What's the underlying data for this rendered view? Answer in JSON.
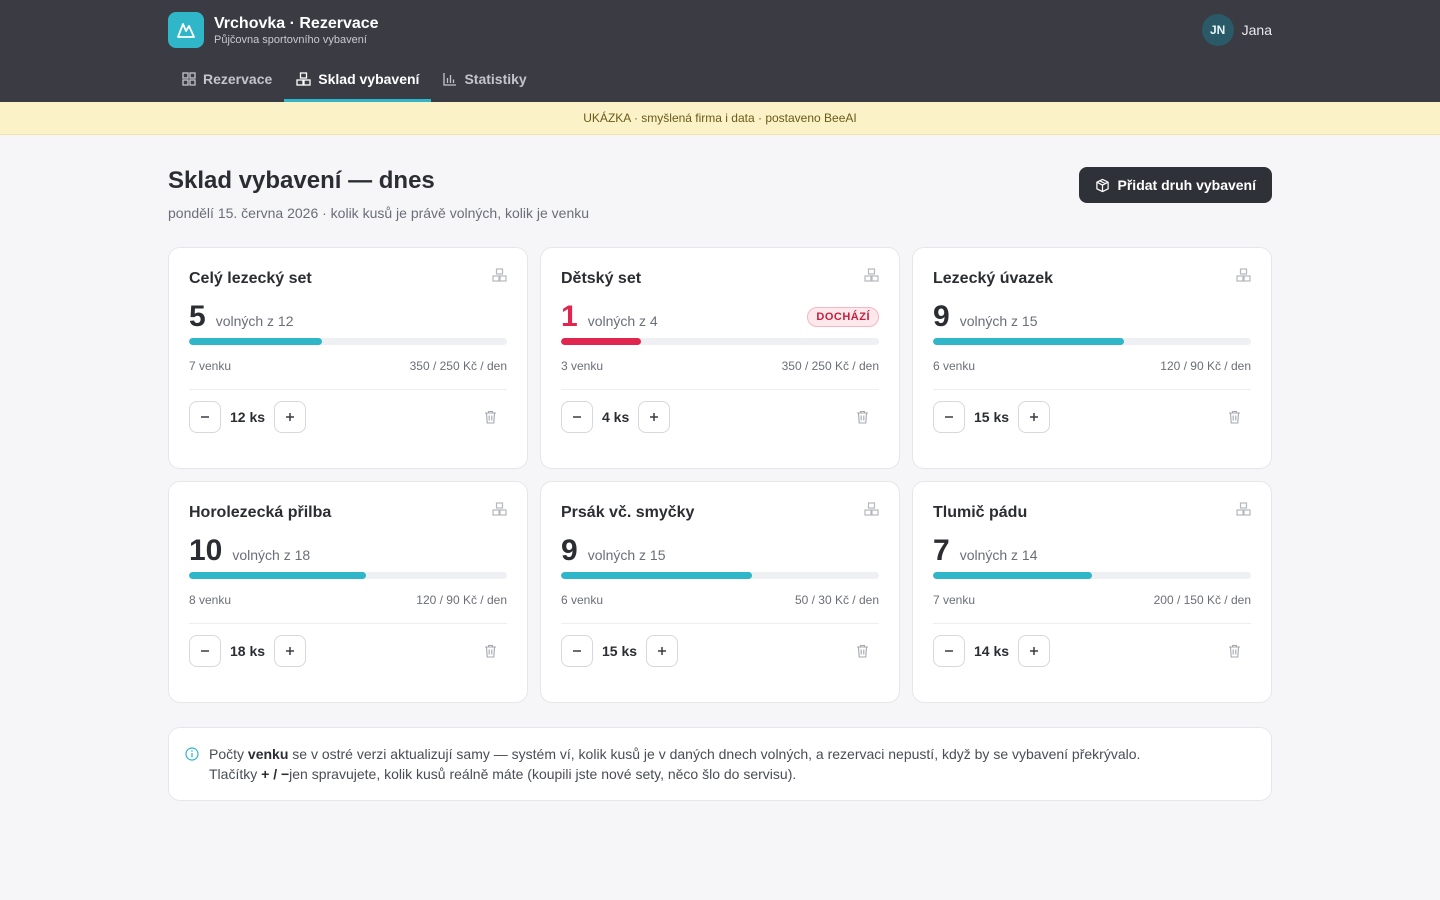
{
  "app": {
    "title": "Vrchovka · Rezervace",
    "subtitle": "Půjčovna sportovního vybavení",
    "accent": "#2fb6c9"
  },
  "user": {
    "initials": "JN",
    "name": "Jana"
  },
  "tabs": [
    {
      "label": "Rezervace",
      "icon": "grid-icon",
      "active": false
    },
    {
      "label": "Sklad vybavení",
      "icon": "boxes-icon",
      "active": true
    },
    {
      "label": "Statistiky",
      "icon": "bar-chart-icon",
      "active": false
    }
  ],
  "banner": "UKÁZKA · smyšlená firma i data · postaveno BeeAI",
  "page": {
    "title": "Sklad vybavení — dnes",
    "subtitle": "pondělí 15. června 2026 · kolik kusů je právě volných, kolik je venku",
    "add_button": "Přidat druh vybavení"
  },
  "items": [
    {
      "name": "Celý lezecký set",
      "available": "5",
      "of_label": "volných z 12",
      "available_fraction": 0.4167,
      "out": "7 venku",
      "price": "350 / 250 Kč / den",
      "qty": "12 ks",
      "low": false,
      "badge": ""
    },
    {
      "name": "Dětský set",
      "available": "1",
      "of_label": "volných z 4",
      "available_fraction": 0.25,
      "out": "3 venku",
      "price": "350 / 250 Kč / den",
      "qty": "4 ks",
      "low": true,
      "badge": "DOCHÁZÍ"
    },
    {
      "name": "Lezecký úvazek",
      "available": "9",
      "of_label": "volných z 15",
      "available_fraction": 0.6,
      "out": "6 venku",
      "price": "120 / 90 Kč / den",
      "qty": "15 ks",
      "low": false,
      "badge": ""
    },
    {
      "name": "Horolezecká přilba",
      "available": "10",
      "of_label": "volných z 18",
      "available_fraction": 0.5556,
      "out": "8 venku",
      "price": "120 / 90 Kč / den",
      "qty": "18 ks",
      "low": false,
      "badge": ""
    },
    {
      "name": "Prsák vč. smyčky",
      "available": "9",
      "of_label": "volných z 15",
      "available_fraction": 0.6,
      "out": "6 venku",
      "price": "50 / 30 Kč / den",
      "qty": "15 ks",
      "low": false,
      "badge": ""
    },
    {
      "name": "Tlumič pádu",
      "available": "7",
      "of_label": "volných z 14",
      "available_fraction": 0.5,
      "out": "7 venku",
      "price": "200 / 150 Kč / den",
      "qty": "14 ks",
      "low": false,
      "badge": ""
    }
  ],
  "note": {
    "part1": "Počty ",
    "bold1": "venku",
    "part2": " se v ostré verzi aktualizují samy — systém ví, kolik kusů je v daných dnech volných, a rezervaci nepustí, když by se vybavení překrývalo.",
    "part3": "Tlačítky ",
    "bold2": "+ / −",
    "part4": "jen spravujete, kolik kusů reálně máte (koupili jste nové sety, něco šlo do servisu)."
  }
}
